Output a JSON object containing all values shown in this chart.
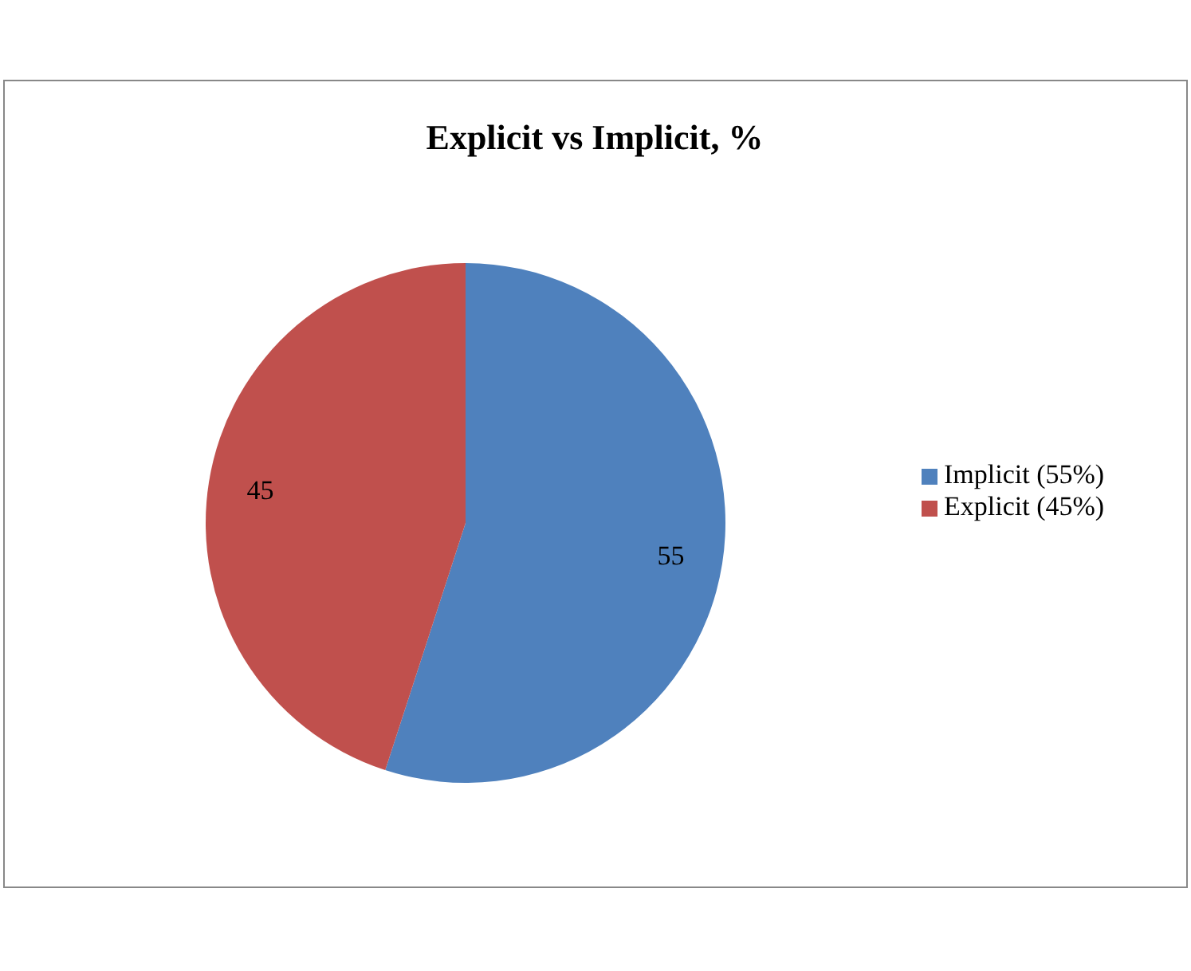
{
  "chart_data": {
    "type": "pie",
    "title": "Explicit vs Implicit, %",
    "categories": [
      "Implicit (55%)",
      "Explicit (45%)"
    ],
    "values": [
      55,
      45
    ],
    "colors": [
      "#4f81bd",
      "#c0504d"
    ],
    "data_labels": true,
    "legend": "right"
  }
}
